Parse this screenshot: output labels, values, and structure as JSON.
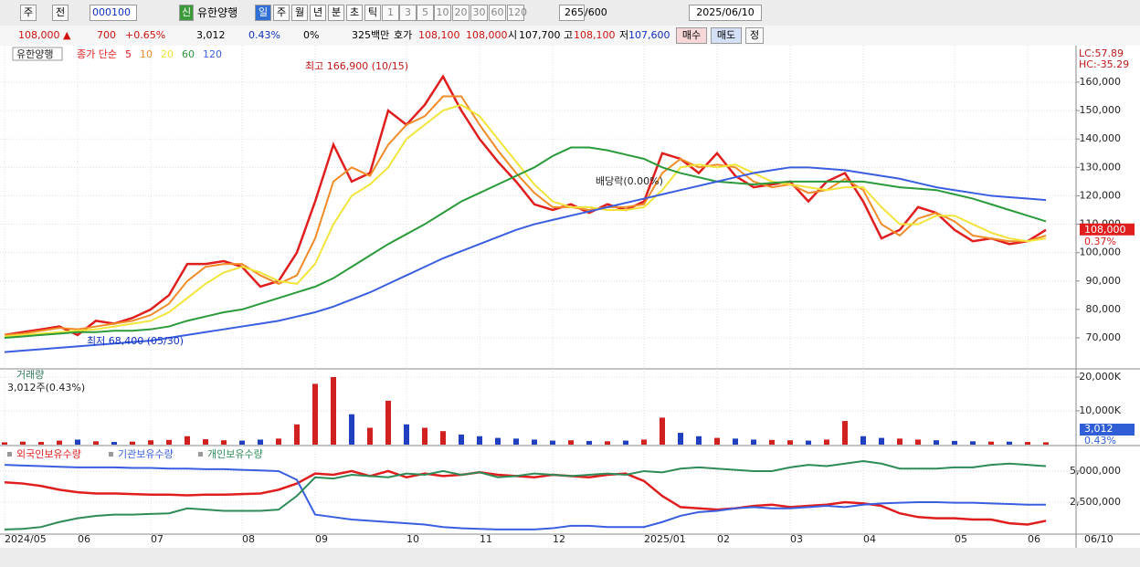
{
  "toolbar": {
    "type_buttons": [
      "주",
      "전"
    ],
    "code": "000100",
    "badge": "신",
    "name": "유한양행",
    "periods": [
      "일",
      "주",
      "월",
      "년",
      "분",
      "초",
      "틱"
    ],
    "intervals": [
      "1",
      "3",
      "5",
      "10",
      "20",
      "30",
      "60",
      "120"
    ],
    "count": "265",
    "max": "/600",
    "date": "2025/06/10"
  },
  "quote": {
    "price": "108,000 ▲",
    "change": "700",
    "rate": "+0.65%",
    "volume": "3,012",
    "volume_rate": "0.43%",
    "ratio": "0%",
    "amount": "325백만",
    "ask_label": "호가",
    "ask": "108,100",
    "bid": "108,000",
    "open_label": "시",
    "open": "107,700",
    "high_label": "고",
    "high": "108,100",
    "low_label": "저",
    "low": "107,600",
    "buy": "매수",
    "sell": "매도",
    "correct": "정"
  },
  "chart_data": [
    {
      "type": "line",
      "title": "유한양행",
      "legend_prefix": "종가 단순",
      "ylim": [
        59400,
        172200
      ],
      "yticks": [
        {
          "value": 70000,
          "label": "70,000"
        },
        {
          "value": 80000,
          "label": "80,000"
        },
        {
          "value": 90000,
          "label": "90,000"
        },
        {
          "value": 100000,
          "label": "100,000"
        },
        {
          "value": 110000,
          "label": "110,000"
        },
        {
          "value": 120000,
          "label": "120,000"
        },
        {
          "value": 130000,
          "label": "130,000"
        },
        {
          "value": 140000,
          "label": "140,000"
        },
        {
          "value": 150000,
          "label": "150,000"
        },
        {
          "value": 160000,
          "label": "160,000"
        }
      ],
      "grid": true,
      "indicators": [
        "LC:57.89",
        "HC:-35.29"
      ],
      "price_tag": {
        "value": 108000,
        "label": "108,000"
      },
      "price_tag_change": "0.37%",
      "annotations": [
        "최고 166,900 (10/15)",
        "최저 68,400 (05/30)",
        "배당락(0.00%)"
      ],
      "series": [
        {
          "name": "5",
          "color": "#e01e1e",
          "values": [
            71000,
            72000,
            73000,
            74000,
            71000,
            76000,
            75000,
            77000,
            80000,
            85000,
            96000,
            96000,
            97000,
            95000,
            88000,
            90000,
            100000,
            118000,
            138000,
            125000,
            128000,
            150000,
            145000,
            152000,
            162000,
            150000,
            140000,
            132000,
            125000,
            117000,
            115000,
            117000,
            114000,
            117000,
            115000,
            118000,
            135000,
            133000,
            128000,
            135000,
            127000,
            123000,
            124000,
            125000,
            118000,
            125000,
            128000,
            118000,
            105000,
            108000,
            116000,
            114000,
            108000,
            104000,
            105000,
            103000,
            104000,
            108000
          ]
        },
        {
          "name": "10",
          "color": "#f08c28",
          "values": [
            71000,
            71500,
            72500,
            73500,
            73000,
            74000,
            75000,
            76000,
            78000,
            82000,
            90000,
            95000,
            96000,
            96000,
            92000,
            89000,
            92000,
            105000,
            125000,
            130000,
            127000,
            138000,
            145000,
            148000,
            155000,
            155000,
            145000,
            136000,
            128000,
            121000,
            116000,
            116000,
            115000,
            116000,
            116000,
            117000,
            128000,
            133000,
            130000,
            131000,
            130000,
            125000,
            123000,
            124000,
            121000,
            122000,
            126000,
            122000,
            110000,
            106000,
            112000,
            114000,
            111000,
            106000,
            105000,
            104000,
            104000,
            106000
          ]
        },
        {
          "name": "20",
          "color": "#f2e43a",
          "values": [
            70500,
            71000,
            71500,
            72000,
            72500,
            73000,
            74000,
            75000,
            76000,
            79000,
            84000,
            89000,
            93000,
            95000,
            93000,
            90000,
            89000,
            96000,
            110000,
            120000,
            124000,
            130000,
            140000,
            145000,
            150000,
            152000,
            148000,
            140000,
            132000,
            124000,
            118000,
            116000,
            116000,
            115000,
            115000,
            116000,
            122000,
            130000,
            131000,
            130000,
            131000,
            128000,
            125000,
            124000,
            123000,
            122000,
            123000,
            123000,
            116000,
            110000,
            110000,
            113000,
            113000,
            110000,
            107000,
            105000,
            104000,
            105000
          ]
        },
        {
          "name": "60",
          "color": "#2a9a3a",
          "values": [
            70000,
            70500,
            71000,
            71500,
            72000,
            72000,
            72500,
            72500,
            73000,
            74000,
            76000,
            77500,
            79000,
            80000,
            82000,
            84000,
            86000,
            88000,
            91000,
            95000,
            99000,
            103000,
            106500,
            110000,
            114000,
            118000,
            121000,
            124000,
            127000,
            130000,
            134000,
            137000,
            137000,
            136000,
            134500,
            133000,
            130000,
            128000,
            126500,
            125000,
            124500,
            124000,
            124500,
            125000,
            125000,
            125000,
            125000,
            125000,
            124000,
            123000,
            122500,
            122000,
            120500,
            119000,
            117000,
            115000,
            113000,
            111000
          ]
        },
        {
          "name": "120",
          "color": "#3a5ee0",
          "values": [
            65000,
            65500,
            66000,
            66500,
            67000,
            67500,
            68000,
            68500,
            69000,
            70000,
            71000,
            72000,
            73000,
            74000,
            75000,
            76000,
            77500,
            79000,
            81000,
            83500,
            86000,
            89000,
            92000,
            95000,
            98000,
            100500,
            103000,
            105500,
            108000,
            110000,
            111500,
            113000,
            114500,
            116000,
            117500,
            119000,
            120500,
            122000,
            123500,
            125000,
            126500,
            128000,
            129000,
            130000,
            130000,
            129500,
            129000,
            128000,
            127000,
            126000,
            124500,
            123000,
            122000,
            121000,
            120000,
            119500,
            119000,
            118500
          ]
        }
      ]
    },
    {
      "type": "bar",
      "title": "거래량",
      "subtitle": "3,012주(0.43%)",
      "ylim": [
        0,
        22160
      ],
      "yticks": [
        {
          "value": 10000,
          "label": "10,000K"
        },
        {
          "value": 20000,
          "label": "20,000K"
        }
      ],
      "up_color": "#d02020",
      "down_color": "#2040c0",
      "tag": "3,012",
      "tag_rate": "0.43%",
      "values": [
        700,
        900,
        800,
        1200,
        1500,
        1000,
        800,
        900,
        1300,
        1400,
        2500,
        1600,
        1300,
        1200,
        1500,
        1800,
        6000,
        18000,
        20000,
        9000,
        5000,
        13000,
        6000,
        5000,
        4000,
        3000,
        2500,
        2000,
        1800,
        1500,
        1200,
        1300,
        1100,
        1000,
        1200,
        1500,
        8000,
        3500,
        2500,
        2000,
        1800,
        1500,
        1400,
        1300,
        1200,
        1500,
        7000,
        2500,
        2000,
        1800,
        1500,
        1300,
        1100,
        1000,
        900,
        900,
        800,
        700
      ]
    },
    {
      "type": "line",
      "ylim": [
        0,
        6760000
      ],
      "yticks": [
        {
          "value": 2500000,
          "label": "2,500,000"
        },
        {
          "value": 5000000,
          "label": "5,000,000"
        }
      ],
      "categories": [
        "2024/05",
        null,
        null,
        null,
        "06",
        null,
        null,
        null,
        "07",
        null,
        null,
        null,
        null,
        "08",
        null,
        null,
        null,
        "09",
        null,
        null,
        null,
        null,
        "10",
        null,
        null,
        null,
        "11",
        null,
        null,
        null,
        "12",
        null,
        null,
        null,
        null,
        "2025/01",
        null,
        null,
        null,
        "02",
        null,
        null,
        null,
        "03",
        null,
        null,
        null,
        "04",
        null,
        null,
        null,
        null,
        "05",
        null,
        null,
        null,
        "06",
        null
      ],
      "last_date": "06/10",
      "series": [
        {
          "name": "외국인보유수량",
          "color": "#e01e1e",
          "values": [
            4100000,
            4000000,
            3800000,
            3500000,
            3300000,
            3200000,
            3200000,
            3150000,
            3100000,
            3100000,
            3050000,
            3100000,
            3100000,
            3150000,
            3200000,
            3500000,
            4000000,
            4800000,
            4700000,
            5000000,
            4600000,
            5000000,
            4500000,
            4800000,
            4600000,
            4700000,
            4900000,
            4700000,
            4600000,
            4500000,
            4700000,
            4600000,
            4500000,
            4700000,
            4800000,
            4200000,
            3000000,
            2100000,
            2000000,
            1900000,
            2000000,
            2200000,
            2300000,
            2100000,
            2200000,
            2300000,
            2500000,
            2400000,
            2200000,
            1600000,
            1300000,
            1200000,
            1200000,
            1100000,
            1100000,
            800000,
            700000,
            1000000
          ]
        },
        {
          "name": "기관보유수량",
          "color": "#3a5ee0",
          "values": [
            5500000,
            5450000,
            5400000,
            5350000,
            5300000,
            5300000,
            5300000,
            5250000,
            5250000,
            5200000,
            5200000,
            5150000,
            5150000,
            5100000,
            5050000,
            5000000,
            4300000,
            1500000,
            1300000,
            1100000,
            1000000,
            900000,
            800000,
            700000,
            500000,
            400000,
            350000,
            300000,
            300000,
            300000,
            400000,
            600000,
            600000,
            500000,
            500000,
            500000,
            900000,
            1400000,
            1700000,
            1800000,
            2000000,
            2100000,
            2000000,
            2000000,
            2100000,
            2200000,
            2100000,
            2300000,
            2400000,
            2450000,
            2500000,
            2500000,
            2450000,
            2450000,
            2400000,
            2350000,
            2300000,
            2300000
          ]
        },
        {
          "name": "개인보유수량",
          "color": "#2e8b57",
          "values": [
            300000,
            350000,
            500000,
            900000,
            1200000,
            1400000,
            1500000,
            1500000,
            1550000,
            1600000,
            2000000,
            1900000,
            1800000,
            1800000,
            1800000,
            1900000,
            3000000,
            4500000,
            4400000,
            4700000,
            4600000,
            4500000,
            4800000,
            4700000,
            5000000,
            4700000,
            4900000,
            4500000,
            4600000,
            4800000,
            4700000,
            4600000,
            4700000,
            4800000,
            4700000,
            5000000,
            4900000,
            5200000,
            5300000,
            5200000,
            5100000,
            5000000,
            5000000,
            5300000,
            5500000,
            5400000,
            5600000,
            5800000,
            5600000,
            5200000,
            5200000,
            5200000,
            5300000,
            5300000,
            5500000,
            5600000,
            5500000,
            5400000
          ]
        }
      ]
    }
  ]
}
